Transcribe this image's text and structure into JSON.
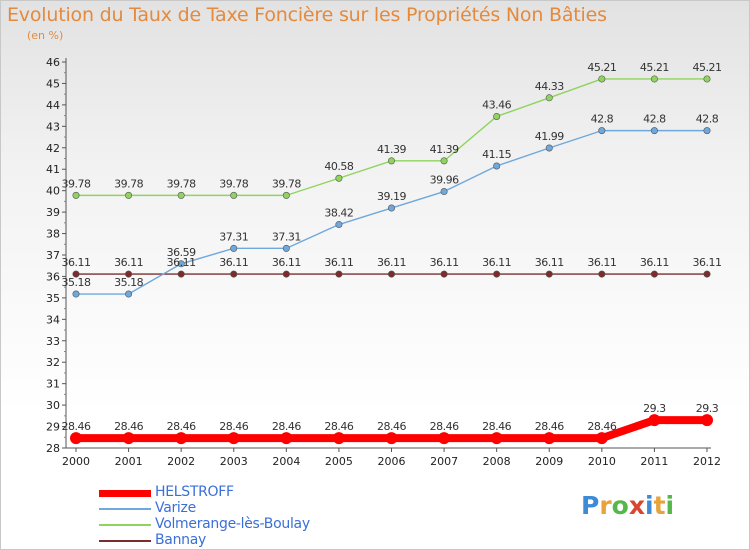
{
  "chart_data": {
    "type": "line",
    "title": "Evolution du Taux de Taxe Foncière sur les Propriétés Non Bâties",
    "unit_label": "(en %)",
    "xlabel": "",
    "ylabel": "",
    "x": [
      "2000",
      "2001",
      "2002",
      "2003",
      "2004",
      "2005",
      "2006",
      "2007",
      "2008",
      "2009",
      "2010",
      "2011",
      "2012"
    ],
    "ylim": [
      28,
      46
    ],
    "yticks": [
      28,
      29,
      30,
      31,
      32,
      33,
      34,
      35,
      36,
      37,
      38,
      39,
      40,
      41,
      42,
      43,
      44,
      45,
      46
    ],
    "grid": false,
    "legend_position": "bottom-left",
    "series": [
      {
        "name": "HELSTROFF",
        "color": "#ff0000",
        "values": [
          28.46,
          28.46,
          28.46,
          28.46,
          28.46,
          28.46,
          28.46,
          28.46,
          28.46,
          28.46,
          28.46,
          29.3,
          29.3
        ],
        "labels": [
          "28.46",
          "28.46",
          "28.46",
          "28.46",
          "28.46",
          "28.46",
          "28.46",
          "28.46",
          "28.46",
          "28.46",
          "28.46",
          "29.3",
          "29.3"
        ]
      },
      {
        "name": "Varize",
        "color": "#6fa8dc",
        "values": [
          35.18,
          35.18,
          36.59,
          37.31,
          37.31,
          38.42,
          39.19,
          39.96,
          41.15,
          41.99,
          42.8,
          42.8,
          42.8
        ],
        "labels": [
          "35.18",
          "35.18",
          "36.59",
          "37.31",
          "37.31",
          "38.42",
          "39.19",
          "39.96",
          "41.15",
          "41.99",
          "42.8",
          "42.8",
          "42.8"
        ]
      },
      {
        "name": "Volmerange-lès-Boulay",
        "color": "#8fd45e",
        "values": [
          39.78,
          39.78,
          39.78,
          39.78,
          39.78,
          40.58,
          41.39,
          41.39,
          43.46,
          44.33,
          45.21,
          45.21,
          45.21
        ],
        "labels": [
          "39.78",
          "39.78",
          "39.78",
          "39.78",
          "39.78",
          "40.58",
          "41.39",
          "41.39",
          "43.46",
          "44.33",
          "45.21",
          "45.21",
          "45.21"
        ]
      },
      {
        "name": "Bannay",
        "color": "#7b2d2d",
        "values": [
          36.11,
          36.11,
          36.11,
          36.11,
          36.11,
          36.11,
          36.11,
          36.11,
          36.11,
          36.11,
          36.11,
          36.11,
          36.11
        ],
        "labels": [
          "36.11",
          "36.11",
          "36.11",
          "36.11",
          "36.11",
          "36.11",
          "36.11",
          "36.11",
          "36.11",
          "36.11",
          "36.11",
          "36.11",
          "36.11"
        ]
      }
    ]
  },
  "logo": {
    "text": "Proxiti",
    "letters": [
      "P",
      "r",
      "o",
      "x",
      "i",
      "t",
      "i"
    ]
  }
}
